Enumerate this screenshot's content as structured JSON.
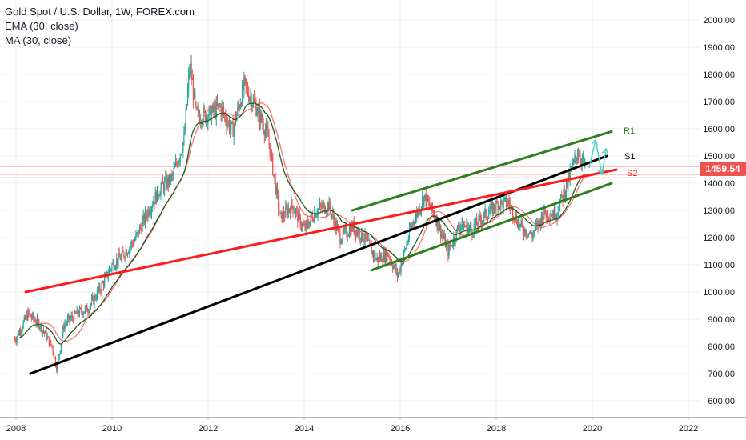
{
  "legend": {
    "symbol": "Gold Spot / U.S. Dollar, 1W, FOREX.com",
    "ema": "EMA (30, close)",
    "ma": "MA (30, close)"
  },
  "colors": {
    "up": "#26a69a",
    "down": "#ef5350",
    "ema": "#1b5e20",
    "ma": "#ff6b6b",
    "support1": "#000000",
    "support2": "#ff1a1a",
    "channel": "#2e7d1e",
    "arrows": "#4dd0c0",
    "last_price_bg": "#ef5350"
  },
  "price_axis": {
    "ticks": [
      "2000.00",
      "1900.00",
      "1800.00",
      "1700.00",
      "1600.00",
      "1500.00",
      "1400.00",
      "1300.00",
      "1200.00",
      "1100.00",
      "1000.00",
      "900.00",
      "800.00",
      "700.00",
      "600.00"
    ],
    "last_price": "1459.54"
  },
  "time_axis": {
    "ticks": [
      "2008",
      "2010",
      "2012",
      "2014",
      "2016",
      "2018",
      "2020",
      "2022"
    ]
  },
  "annotations": {
    "r1": "R1",
    "s1": "S1",
    "s2": "S2"
  },
  "chart_data": {
    "type": "candlestick",
    "title": "Gold Spot / U.S. Dollar, 1W, FOREX.com",
    "ylim": [
      560,
      2100
    ],
    "xlim": [
      2007.95,
      2022.2
    ],
    "grid": true,
    "series": [
      {
        "name": "Gold Spot / U.S. Dollar",
        "x": [
          2008.0,
          2008.25,
          2008.5,
          2008.75,
          2008.85,
          2009.0,
          2009.25,
          2009.5,
          2009.75,
          2010.0,
          2010.25,
          2010.5,
          2010.75,
          2011.0,
          2011.25,
          2011.5,
          2011.62,
          2011.75,
          2012.0,
          2012.25,
          2012.5,
          2012.75,
          2013.0,
          2013.25,
          2013.5,
          2013.75,
          2014.0,
          2014.25,
          2014.5,
          2014.75,
          2015.0,
          2015.25,
          2015.5,
          2015.75,
          2015.95,
          2016.25,
          2016.5,
          2016.75,
          2017.0,
          2017.25,
          2017.5,
          2017.75,
          2018.0,
          2018.25,
          2018.5,
          2018.75,
          2019.0,
          2019.25,
          2019.5,
          2019.7,
          2019.85
        ],
        "y": [
          830,
          920,
          880,
          800,
          720,
          880,
          920,
          940,
          1010,
          1100,
          1140,
          1200,
          1300,
          1380,
          1420,
          1560,
          1840,
          1650,
          1650,
          1680,
          1590,
          1760,
          1680,
          1570,
          1270,
          1320,
          1230,
          1300,
          1320,
          1200,
          1240,
          1200,
          1120,
          1140,
          1060,
          1250,
          1350,
          1270,
          1150,
          1250,
          1230,
          1280,
          1320,
          1330,
          1240,
          1210,
          1290,
          1290,
          1410,
          1520,
          1459.54
        ]
      }
    ],
    "indicators": [
      {
        "name": "EMA (30, close)"
      },
      {
        "name": "MA (30, close)"
      }
    ],
    "trendlines": [
      {
        "label": "S1",
        "x": [
          2008.3,
          2020.3
        ],
        "y": [
          700,
          1500
        ]
      },
      {
        "label": "S2",
        "x": [
          2008.2,
          2020.5
        ],
        "y": [
          1000,
          1450
        ]
      },
      {
        "label": "R1",
        "x": [
          2015.0,
          2020.4
        ],
        "y": [
          1300,
          1590
        ]
      },
      {
        "label": "",
        "x": [
          2015.4,
          2020.4
        ],
        "y": [
          1080,
          1400
        ]
      }
    ]
  }
}
